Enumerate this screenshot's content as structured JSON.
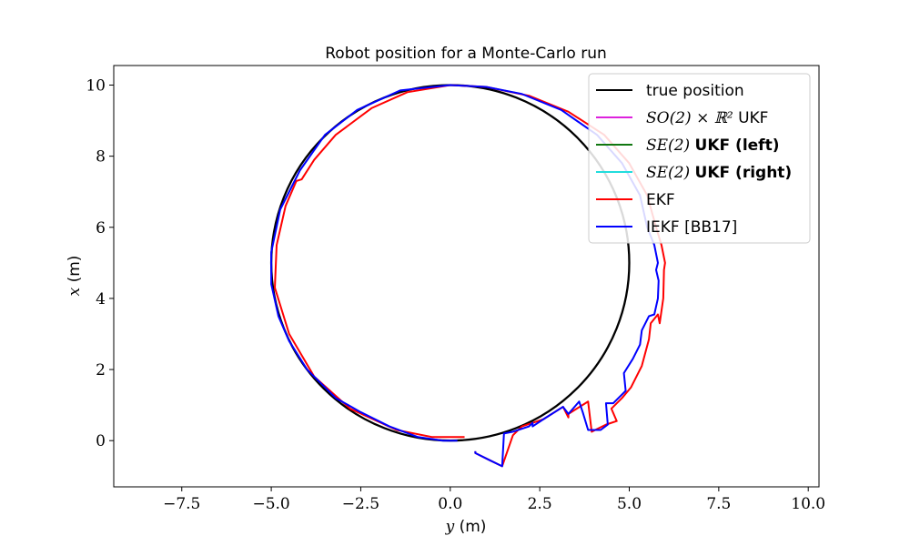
{
  "chart_data": {
    "type": "line",
    "title": "Robot position for a Monte-Carlo run",
    "xlabel": {
      "var": "y",
      "unit": "(m)"
    },
    "ylabel": {
      "var": "x",
      "unit": "(m)"
    },
    "xlim": [
      -9.4,
      10.3
    ],
    "ylim": [
      -1.3,
      10.55
    ],
    "xticks": [
      -7.5,
      -5.0,
      -2.5,
      0.0,
      2.5,
      5.0,
      7.5,
      10.0
    ],
    "xtick_labels": [
      "−7.5",
      "−5.0",
      "−2.5",
      "0.0",
      "2.5",
      "5.0",
      "7.5",
      "10.0"
    ],
    "yticks": [
      0,
      2,
      4,
      6,
      8,
      10
    ],
    "ytick_labels": [
      "0",
      "2",
      "4",
      "6",
      "8",
      "10"
    ],
    "grid": false,
    "legend_position": "top-right",
    "legend": [
      {
        "parts": [
          {
            "t": "true position",
            "style": "sans"
          }
        ],
        "color": "#000000"
      },
      {
        "parts": [
          {
            "t": "SO(2) × ℝ² ",
            "style": "math"
          },
          {
            "t": "UKF",
            "style": "sans"
          }
        ],
        "color": "#dd22dd"
      },
      {
        "parts": [
          {
            "t": "SE(2) ",
            "style": "math"
          },
          {
            "t": "UKF (left)",
            "style": "bold"
          }
        ],
        "color": "#117711"
      },
      {
        "parts": [
          {
            "t": "SE(2) ",
            "style": "math"
          },
          {
            "t": "UKF (right)",
            "style": "bold"
          }
        ],
        "color": "#22dddd"
      },
      {
        "parts": [
          {
            "t": "EKF",
            "style": "sans"
          }
        ],
        "color": "#ff0000"
      },
      {
        "parts": [
          {
            "t": "IEKF [BB17]",
            "style": "sans"
          }
        ],
        "color": "#0000ff"
      }
    ],
    "series": [
      {
        "name": "true position",
        "color": "#000000",
        "width": 2.3,
        "shape": "circle",
        "center": [
          0,
          5
        ],
        "radius": 5
      },
      {
        "name": "EKF",
        "color": "#ff0000",
        "width": 2,
        "points": [
          [
            0.4,
            0.1
          ],
          [
            -0.5,
            0.1
          ],
          [
            -1.5,
            0.3
          ],
          [
            -2.8,
            0.9
          ],
          [
            -3.8,
            1.8
          ],
          [
            -4.5,
            3.0
          ],
          [
            -4.9,
            4.3
          ],
          [
            -4.85,
            5.5
          ],
          [
            -4.6,
            6.6
          ],
          [
            -4.3,
            7.3
          ],
          [
            -4.15,
            7.35
          ],
          [
            -3.8,
            7.9
          ],
          [
            -3.2,
            8.6
          ],
          [
            -2.2,
            9.35
          ],
          [
            -1.2,
            9.8
          ],
          [
            0.0,
            10.0
          ],
          [
            1.0,
            9.95
          ],
          [
            2.2,
            9.7
          ],
          [
            3.3,
            9.25
          ],
          [
            4.3,
            8.6
          ],
          [
            5.0,
            7.8
          ],
          [
            5.5,
            6.9
          ],
          [
            5.75,
            6.0
          ],
          [
            5.9,
            5.5
          ],
          [
            6.0,
            5.0
          ],
          [
            5.97,
            4.8
          ],
          [
            5.95,
            4.0
          ],
          [
            5.85,
            3.3
          ],
          [
            5.8,
            3.55
          ],
          [
            5.6,
            3.3
          ],
          [
            5.55,
            2.85
          ],
          [
            5.35,
            2.1
          ],
          [
            5.05,
            1.5
          ],
          [
            4.8,
            1.2
          ],
          [
            4.5,
            0.9
          ],
          [
            4.65,
            0.55
          ],
          [
            4.35,
            0.45
          ],
          [
            3.95,
            0.25
          ],
          [
            3.85,
            1.1
          ],
          [
            3.3,
            0.75
          ],
          [
            3.3,
            0.65
          ],
          [
            3.15,
            0.95
          ],
          [
            2.6,
            0.6
          ],
          [
            2.3,
            0.5
          ],
          [
            2.0,
            0.4
          ],
          [
            1.75,
            0.15
          ],
          [
            1.45,
            -0.72
          ],
          [
            1.1,
            -0.55
          ],
          [
            0.7,
            -0.35
          ],
          [
            0.7,
            -0.3
          ]
        ]
      },
      {
        "name": "IEKF [BB17]",
        "color": "#0000ff",
        "width": 2,
        "points": [
          [
            0.7,
            -0.3
          ],
          [
            0.7,
            -0.35
          ],
          [
            1.1,
            -0.55
          ],
          [
            1.45,
            -0.72
          ],
          [
            1.5,
            0.2
          ],
          [
            1.75,
            0.25
          ],
          [
            2.2,
            0.4
          ],
          [
            2.3,
            0.5
          ],
          [
            2.3,
            0.4
          ],
          [
            2.6,
            0.6
          ],
          [
            3.15,
            0.95
          ],
          [
            3.3,
            0.75
          ],
          [
            3.6,
            1.1
          ],
          [
            3.7,
            0.8
          ],
          [
            3.85,
            0.3
          ],
          [
            4.2,
            0.3
          ],
          [
            4.4,
            0.45
          ],
          [
            4.35,
            1.05
          ],
          [
            4.55,
            1.05
          ],
          [
            4.9,
            1.4
          ],
          [
            4.85,
            1.9
          ],
          [
            5.1,
            2.3
          ],
          [
            5.3,
            2.7
          ],
          [
            5.35,
            3.1
          ],
          [
            5.55,
            3.5
          ],
          [
            5.7,
            3.55
          ],
          [
            5.8,
            4.0
          ],
          [
            5.82,
            4.5
          ],
          [
            5.75,
            4.8
          ],
          [
            5.8,
            5.0
          ],
          [
            5.7,
            5.5
          ],
          [
            5.5,
            6.0
          ],
          [
            5.3,
            6.9
          ],
          [
            4.8,
            7.8
          ],
          [
            4.1,
            8.6
          ],
          [
            3.1,
            9.3
          ],
          [
            2.0,
            9.75
          ],
          [
            1.0,
            9.95
          ],
          [
            0.0,
            10.0
          ],
          [
            -1.4,
            9.85
          ],
          [
            -2.6,
            9.3
          ],
          [
            -3.5,
            8.6
          ],
          [
            -4.2,
            7.6
          ],
          [
            -4.75,
            6.5
          ],
          [
            -5.0,
            5.3
          ],
          [
            -5.0,
            4.4
          ],
          [
            -4.8,
            3.5
          ],
          [
            -4.5,
            2.8
          ],
          [
            -4.0,
            2.0
          ],
          [
            -3.2,
            1.2
          ],
          [
            -2.5,
            0.8
          ],
          [
            -1.7,
            0.4
          ],
          [
            -0.9,
            0.1
          ],
          [
            -0.2,
            0.0
          ],
          [
            0.2,
            0.0
          ]
        ]
      }
    ]
  }
}
